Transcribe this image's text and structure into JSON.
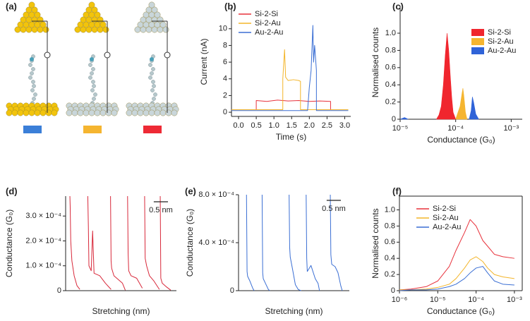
{
  "diagram": {
    "label": "(a)"
  },
  "chart_data": [
    {
      "type": "line",
      "label": "(b)",
      "xlabel": "Time (s)",
      "ylabel": "Current (nA)",
      "xlim": [
        -0.2,
        3.17
      ],
      "xticks": [
        {
          "value": 0,
          "label": "0.0"
        },
        0.5,
        {
          "value": 1,
          "label": "1.0"
        },
        1.5,
        {
          "value": 2,
          "label": "2.0"
        },
        2.5,
        {
          "value": 3,
          "label": "3.0"
        }
      ],
      "ylim": [
        -0.5,
        12.6
      ],
      "yticks": [
        0,
        2,
        4,
        6,
        8,
        10
      ],
      "legend": "upper left",
      "series": [
        {
          "name": "Si-2-Si",
          "color": "#e8323c",
          "x": [
            -0.2,
            0.5,
            0.5,
            0.8,
            1.1,
            1.4,
            1.7,
            2.0,
            2.3,
            2.6,
            2.6,
            3.1
          ],
          "values": [
            0.3,
            0.3,
            1.4,
            1.3,
            1.45,
            1.35,
            1.4,
            1.3,
            1.35,
            1.3,
            0.3,
            0.3
          ]
        },
        {
          "name": "Si-2-Au",
          "color": "#f3b52a",
          "x": [
            -0.2,
            1.25,
            1.25,
            1.3,
            1.33,
            1.4,
            1.55,
            1.7,
            1.75,
            1.75,
            3.1
          ],
          "values": [
            0.3,
            0.3,
            4.0,
            7.5,
            4.2,
            3.8,
            3.9,
            3.8,
            3.7,
            0.3,
            0.3
          ]
        },
        {
          "name": "Au-2-Au",
          "color": "#3b6fd4",
          "x": [
            -0.2,
            1.95,
            2.0,
            2.05,
            2.1,
            2.12,
            2.15,
            2.2,
            2.2,
            3.1
          ],
          "values": [
            0.2,
            0.2,
            3.0,
            5.0,
            10.4,
            6.0,
            8.0,
            5.0,
            0.2,
            0.2
          ]
        }
      ]
    },
    {
      "type": "area",
      "label": "(c)",
      "xlabel": "Conductance (G₀)",
      "ylabel": "Normalised counts",
      "xscale": "log",
      "xlim": [
        1e-05,
        0.00158
      ],
      "xticks": [
        {
          "value": 1e-05,
          "label": "10⁻⁵"
        },
        {
          "value": 0.0001,
          "label": "10⁻⁴"
        },
        {
          "value": 0.001,
          "label": "10⁻³"
        }
      ],
      "ylim": [
        0,
        1.32
      ],
      "yticks": [
        0,
        0.2,
        0.4,
        0.6,
        0.8,
        {
          "value": 1,
          "label": "1.0"
        }
      ],
      "legend": "upper right",
      "series": [
        {
          "name": "Si-2-Si",
          "color": "#f0262e",
          "x": [
            4.5e-05,
            5e-05,
            5.5e-05,
            6e-05,
            6.5e-05,
            7e-05,
            7.5e-05,
            8e-05,
            8.5e-05,
            9e-05,
            0.0001
          ],
          "values": [
            0,
            0.05,
            0.15,
            0.4,
            0.75,
            1.0,
            0.8,
            0.5,
            0.25,
            0.08,
            0
          ]
        },
        {
          "name": "Si-2-Au",
          "color": "#f5b530",
          "x": [
            0.0001,
            0.00011,
            0.00012,
            0.00013,
            0.000135,
            0.00014,
            0.00015,
            0.00016
          ],
          "values": [
            0,
            0.08,
            0.15,
            0.3,
            0.36,
            0.28,
            0.08,
            0
          ]
        },
        {
          "name": "Au-2-Au",
          "color": "#2f63d8",
          "x": [
            1e-05,
            1.2e-05,
            1.4e-05,
            0.00016,
            0.000175,
            0.00019,
            0.0002,
            0.00021,
            0.00023,
            0.00026
          ],
          "values": [
            0,
            0.02,
            0,
            null,
            0,
            0.1,
            0.26,
            0.2,
            0.06,
            0
          ]
        }
      ]
    },
    {
      "type": "line",
      "label": "(d)",
      "xlabel": "Stretching (nm)",
      "ylabel": "Conductance (G₀)",
      "color": "#d8283a",
      "xlim": [
        0,
        3.9
      ],
      "ylim": [
        0,
        0.00038
      ],
      "yticks": [
        0,
        {
          "value": 0.0001,
          "label": "1.0 × 10⁻⁴"
        },
        {
          "value": 0.0002,
          "label": "2.0 × 10⁻⁴"
        },
        {
          "value": 0.0003,
          "label": "3.0 × 10⁻⁴"
        }
      ],
      "scale_bar": {
        "value": 0.5,
        "label": "0.5 nm"
      },
      "series": [
        {
          "x": [
            0.15,
            0.16,
            0.18,
            0.22,
            0.3,
            0.4,
            0.5
          ],
          "values": [
            0.00038,
            0.00034,
            0.0002,
            0.00012,
            6e-05,
            2e-05,
            5e-06
          ]
        },
        {
          "x": [
            0.78,
            0.8,
            0.82,
            0.9,
            0.95,
            1.0,
            1.2,
            1.4,
            1.6
          ],
          "values": [
            0.00038,
            0.00026,
            0.0001,
            8e-05,
            0.00024,
            7e-05,
            6e-05,
            3e-05,
            5e-06
          ]
        },
        {
          "x": [
            1.58,
            1.6,
            1.62,
            1.7,
            1.8,
            2.0,
            2.1
          ],
          "values": [
            0.00038,
            0.00012,
            9e-05,
            6e-05,
            5e-05,
            3e-05,
            2e-06
          ]
        },
        {
          "x": [
            2.18,
            2.2,
            2.22,
            2.3,
            2.5,
            2.7
          ],
          "values": [
            0.00038,
            0.00015,
            8e-05,
            6e-05,
            5e-05,
            1e-05
          ]
        },
        {
          "x": [
            2.78,
            2.8,
            2.85,
            2.95,
            3.1,
            3.3
          ],
          "values": [
            0.00038,
            0.00013,
            0.0001,
            6e-05,
            4e-05,
            5e-06
          ]
        },
        {
          "x": [
            3.33,
            3.35,
            3.4,
            3.55,
            3.7
          ],
          "values": [
            0.00038,
            5e-05,
            3e-05,
            1.5e-05,
            2e-06
          ]
        }
      ]
    },
    {
      "type": "line",
      "label": "(e)",
      "xlabel": "Stretching (nm)",
      "ylabel": "Conductance (G₀)",
      "color": "#3b6fd4",
      "xlim": [
        0,
        3.9
      ],
      "ylim": [
        0,
        0.0008
      ],
      "yticks": [
        0,
        {
          "value": 0.0004,
          "label": "4.0 × 10⁻⁴"
        },
        {
          "value": 0.0008,
          "label": "8.0 × 10⁻⁴"
        }
      ],
      "scale_bar": {
        "value": 0.5,
        "label": "0.5 nm"
      },
      "series": [
        {
          "x": [
            0.28,
            0.3,
            0.32,
            0.4,
            0.5,
            0.55
          ],
          "values": [
            0.0008,
            0.00016,
            0.00012,
            8e-05,
            2e-05,
            0
          ]
        },
        {
          "x": [
            0.83,
            0.85,
            0.87,
            0.95,
            1.05,
            1.1
          ],
          "values": [
            0.0008,
            0.00015,
            0.0001,
            6e-05,
            1e-05,
            0
          ]
        },
        {
          "x": [
            1.78,
            1.8,
            1.82,
            1.9,
            2.0,
            2.1,
            2.2
          ],
          "values": [
            0.0008,
            0.00036,
            0.00028,
            0.00018,
            5e-05,
            1e-05,
            0
          ]
        },
        {
          "x": [
            2.38,
            2.4,
            2.42,
            2.55,
            2.7,
            2.8,
            2.85
          ],
          "values": [
            0.0008,
            0.00027,
            0.00016,
            0.00021,
            0.0001,
            6e-05,
            0
          ]
        },
        {
          "x": [
            3.23,
            3.25,
            3.28,
            3.4,
            3.5,
            3.6,
            3.65
          ],
          "values": [
            0.0008,
            0.0003,
            0.00022,
            0.0002,
            0.00015,
            4e-05,
            0
          ]
        }
      ]
    },
    {
      "type": "line",
      "label": "(f)",
      "xlabel": "Conductance (G₀)",
      "ylabel": "Normalised counts",
      "xscale": "log",
      "xlim": [
        1e-06,
        0.0016
      ],
      "xticks": [
        {
          "value": 1e-06,
          "label": "10⁻⁶"
        },
        {
          "value": 1e-05,
          "label": "10⁻⁵"
        },
        {
          "value": 0.0001,
          "label": "10⁻⁴"
        },
        {
          "value": 0.001,
          "label": "10⁻³"
        }
      ],
      "ylim": [
        0,
        1.17
      ],
      "yticks": [
        0,
        0.2,
        0.4,
        0.6,
        0.8,
        {
          "value": 1,
          "label": "1.0"
        }
      ],
      "legend": "upper left",
      "x": [
        1e-06,
        2e-06,
        5e-06,
        1e-05,
        2e-05,
        3e-05,
        5e-05,
        7e-05,
        0.0001,
        0.00015,
        0.0002,
        0.0003,
        0.0005,
        0.001
      ],
      "series": [
        {
          "name": "Si-2-Si",
          "color": "#e8323c",
          "values": [
            0.01,
            0.02,
            0.05,
            0.12,
            0.3,
            0.5,
            0.72,
            0.88,
            0.8,
            0.62,
            0.55,
            0.45,
            0.42,
            0.4
          ]
        },
        {
          "name": "Si-2-Au",
          "color": "#f3b52a",
          "values": [
            0.01,
            0.01,
            0.02,
            0.04,
            0.08,
            0.15,
            0.28,
            0.38,
            0.42,
            0.36,
            0.28,
            0.2,
            0.17,
            0.15
          ]
        },
        {
          "name": "Au-2-Au",
          "color": "#3b6fd4",
          "values": [
            0,
            0.01,
            0.01,
            0.02,
            0.05,
            0.08,
            0.15,
            0.22,
            0.28,
            0.3,
            0.22,
            0.12,
            0.08,
            0.07
          ]
        }
      ]
    }
  ]
}
